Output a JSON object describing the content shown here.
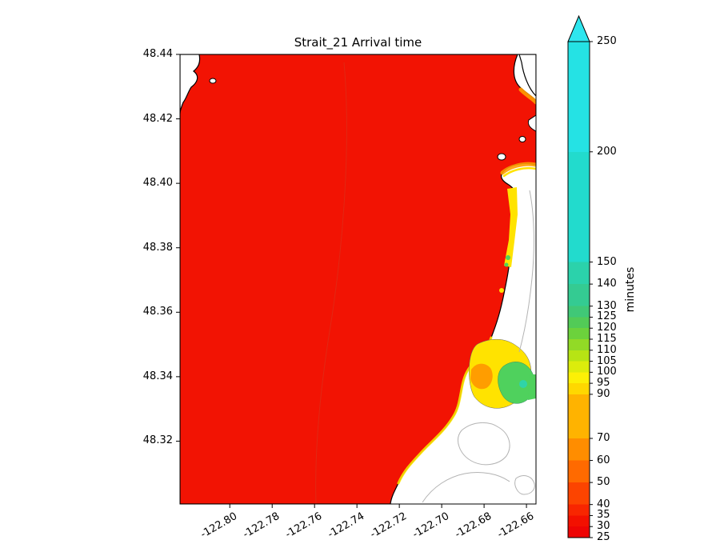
{
  "chart_data": {
    "type": "heatmap",
    "subtype": "filled contour map (tsunami arrival time)",
    "title": "Strait_21 Arrival time",
    "xlabel": "",
    "ylabel": "",
    "xlim": [
      -122.8235,
      -122.6555
    ],
    "ylim": [
      48.3005,
      48.44
    ],
    "grid": false,
    "x_ticks": [
      "-122.80",
      "-122.78",
      "-122.76",
      "-122.74",
      "-122.72",
      "-122.70",
      "-122.68",
      "-122.66"
    ],
    "x_tick_values": [
      -122.8,
      -122.78,
      -122.76,
      -122.74,
      -122.72,
      -122.7,
      -122.68,
      -122.66
    ],
    "y_ticks": [
      "48.44",
      "48.42",
      "48.40",
      "48.38",
      "48.36",
      "48.34",
      "48.32"
    ],
    "y_tick_values": [
      48.44,
      48.42,
      48.4,
      48.38,
      48.36,
      48.34,
      48.32
    ],
    "colorbar": {
      "label": "minutes",
      "range": [
        25,
        250
      ],
      "extend": "max",
      "ticks": [
        250,
        200,
        150,
        140,
        130,
        125,
        120,
        115,
        110,
        105,
        100,
        95,
        90,
        70,
        60,
        50,
        40,
        35,
        30,
        25
      ],
      "levels": [
        25,
        30,
        35,
        40,
        50,
        60,
        70,
        90,
        95,
        100,
        105,
        110,
        115,
        120,
        125,
        130,
        140,
        150,
        200,
        250
      ],
      "band_colors": [
        "#ee0404",
        "#f31000",
        "#f82600",
        "#fc4400",
        "#ff6a00",
        "#ff8d00",
        "#ffb300",
        "#ffd800",
        "#fcf006",
        "#dcec0c",
        "#b7e414",
        "#92da26",
        "#6cd23c",
        "#52cb57",
        "#40c877",
        "#34cb92",
        "#2bd2ab",
        "#22dbcd",
        "#25e2e4"
      ],
      "extend_color": "#2ee6ee"
    },
    "map_colors": {
      "water": "#f21303",
      "land": "#ffffff",
      "coastline": "#000000",
      "coast_yellow": "#ffe300",
      "coast_orange": "#ff9d00",
      "coast_green": "#4fd15d",
      "coast_teal": "#2fd4a8",
      "inner_contour": "#d43a23",
      "topo_contour_gray": "#b3b3b3"
    },
    "field_summary": {
      "units": "minutes",
      "open_water": "approx. 25-40 min arrival (red) over most of the strait",
      "nearshore_east_coast": "approx. 90-150 min (yellow-green bands) along the eastern shoreline",
      "shallow_bay_patches": "approx. 100-250 min (green/teal patches) in small embayments near 48.33-48.36N, -122.67W",
      "land": "white with gray topographic contour lines; small white islands outlined in black"
    }
  }
}
